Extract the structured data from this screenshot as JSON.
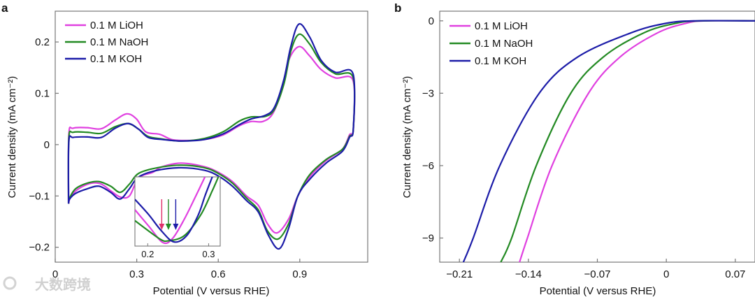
{
  "chart_data": [
    {
      "panel_label": "a",
      "type": "line",
      "title": "",
      "xlabel": "Potential (V versus RHE)",
      "ylabel": "Current density (mA cm⁻²)",
      "xlim": [
        0,
        1.15
      ],
      "ylim": [
        -0.229,
        0.26
      ],
      "xticks": [
        0,
        0.3,
        0.6,
        0.9
      ],
      "xtick_labels": [
        "0",
        "0.3",
        "0.6",
        "0.9"
      ],
      "yticks": [
        -0.2,
        -0.1,
        0,
        0.1,
        0.2
      ],
      "ytick_labels": [
        "−0.2",
        "−0.1",
        "0",
        "0.1",
        "0.2"
      ],
      "legend_position": "top-left",
      "series": [
        {
          "name": "0.1 M LiOH",
          "color": "#e040e0",
          "x": [
            0.049,
            0.05,
            0.066,
            0.118,
            0.17,
            0.221,
            0.264,
            0.299,
            0.333,
            0.385,
            0.428,
            0.48,
            0.549,
            0.618,
            0.678,
            0.721,
            0.764,
            0.8,
            0.833,
            0.859,
            0.897,
            0.936,
            0.979,
            1.031,
            1.096,
            1.097,
            1.083,
            1.057,
            0.997,
            0.936,
            0.893,
            0.859,
            0.816,
            0.781,
            0.747,
            0.704,
            0.652,
            0.6,
            0.549,
            0.463,
            0.394,
            0.359,
            0.307,
            0.273,
            0.239,
            0.204,
            0.17,
            0.135,
            0.092,
            0.058,
            0.049
          ],
          "y": [
            -0.115,
            0.019,
            0.032,
            0.033,
            0.031,
            0.048,
            0.06,
            0.05,
            0.025,
            0.02,
            0.01,
            0.008,
            0.01,
            0.019,
            0.037,
            0.045,
            0.045,
            0.06,
            0.105,
            0.164,
            0.191,
            0.173,
            0.146,
            0.13,
            0.125,
            0.03,
            0.019,
            -0.009,
            -0.031,
            -0.063,
            -0.1,
            -0.145,
            -0.172,
            -0.154,
            -0.118,
            -0.1,
            -0.072,
            -0.054,
            -0.043,
            -0.036,
            -0.043,
            -0.054,
            -0.065,
            -0.1,
            -0.102,
            -0.09,
            -0.077,
            -0.075,
            -0.084,
            -0.1,
            -0.115
          ]
        },
        {
          "name": "0.1 M NaOH",
          "color": "#238a23",
          "x": [
            0.049,
            0.05,
            0.066,
            0.118,
            0.17,
            0.221,
            0.269,
            0.307,
            0.342,
            0.394,
            0.463,
            0.549,
            0.618,
            0.678,
            0.721,
            0.773,
            0.807,
            0.842,
            0.867,
            0.897,
            0.936,
            0.979,
            1.031,
            1.096,
            1.097,
            1.083,
            1.057,
            0.997,
            0.936,
            0.893,
            0.859,
            0.82,
            0.781,
            0.747,
            0.704,
            0.652,
            0.6,
            0.549,
            0.463,
            0.376,
            0.307,
            0.273,
            0.239,
            0.204,
            0.161,
            0.118,
            0.075,
            0.053,
            0.049
          ],
          "y": [
            -0.115,
            0.012,
            0.024,
            0.024,
            0.022,
            0.035,
            0.041,
            0.03,
            0.016,
            0.011,
            0.007,
            0.012,
            0.025,
            0.046,
            0.054,
            0.055,
            0.069,
            0.119,
            0.182,
            0.215,
            0.196,
            0.16,
            0.138,
            0.131,
            0.03,
            0.016,
            -0.009,
            -0.029,
            -0.059,
            -0.1,
            -0.154,
            -0.184,
            -0.168,
            -0.127,
            -0.104,
            -0.075,
            -0.056,
            -0.045,
            -0.04,
            -0.045,
            -0.056,
            -0.077,
            -0.093,
            -0.081,
            -0.072,
            -0.075,
            -0.086,
            -0.104,
            -0.115
          ]
        },
        {
          "name": "0.1 M KOH",
          "color": "#1c1ca8",
          "x": [
            0.049,
            0.05,
            0.066,
            0.118,
            0.17,
            0.221,
            0.269,
            0.307,
            0.342,
            0.394,
            0.463,
            0.549,
            0.618,
            0.678,
            0.721,
            0.773,
            0.807,
            0.842,
            0.867,
            0.897,
            0.936,
            0.979,
            1.031,
            1.096,
            1.097,
            1.083,
            1.057,
            0.997,
            0.936,
            0.893,
            0.859,
            0.824,
            0.785,
            0.747,
            0.704,
            0.652,
            0.6,
            0.549,
            0.463,
            0.376,
            0.307,
            0.273,
            0.239,
            0.204,
            0.161,
            0.118,
            0.075,
            0.053,
            0.049
          ],
          "y": [
            -0.115,
            0.005,
            0.014,
            0.015,
            0.014,
            0.032,
            0.041,
            0.03,
            0.014,
            0.01,
            0.007,
            0.01,
            0.021,
            0.039,
            0.05,
            0.057,
            0.073,
            0.128,
            0.191,
            0.235,
            0.21,
            0.164,
            0.141,
            0.138,
            0.03,
            0.014,
            -0.013,
            -0.036,
            -0.068,
            -0.1,
            -0.163,
            -0.203,
            -0.177,
            -0.131,
            -0.109,
            -0.081,
            -0.061,
            -0.05,
            -0.045,
            -0.05,
            -0.063,
            -0.086,
            -0.106,
            -0.093,
            -0.081,
            -0.086,
            -0.095,
            -0.106,
            -0.115
          ]
        }
      ],
      "inset": {
        "xlim": [
          0.179,
          0.319
        ],
        "ylim": [
          -0.11,
          -0.07
        ],
        "xticks": [
          0.2,
          0.3
        ],
        "xtick_labels": [
          "0.2",
          "0.3"
        ],
        "series": [
          {
            "name": "0.1 M LiOH",
            "color": "#e040e0",
            "x": [
              0.179,
              0.202,
              0.225,
              0.241,
              0.26,
              0.279,
              0.294
            ],
            "y": [
              -0.089,
              -0.0986,
              -0.108,
              -0.1055,
              -0.0945,
              -0.081,
              -0.07
            ]
          },
          {
            "name": "0.1 M NaOH",
            "color": "#238a23",
            "x": [
              0.179,
              0.202,
              0.222,
              0.233,
              0.26,
              0.287,
              0.306,
              0.316
            ],
            "y": [
              -0.0953,
              -0.1014,
              -0.1063,
              -0.107,
              -0.104,
              -0.092,
              -0.078,
              -0.07
            ]
          },
          {
            "name": "0.1 M KOH",
            "color": "#1c1ca8",
            "x": [
              0.179,
              0.202,
              0.222,
              0.243,
              0.264,
              0.283,
              0.294,
              0.306
            ],
            "y": [
              -0.083,
              -0.092,
              -0.101,
              -0.1076,
              -0.104,
              -0.092,
              -0.081,
              -0.07
            ]
          }
        ],
        "arrows": [
          {
            "x": 0.223,
            "color": "#e0306a"
          },
          {
            "x": 0.234,
            "color": "#238a23"
          },
          {
            "x": 0.246,
            "color": "#1c1ca8"
          }
        ]
      }
    },
    {
      "panel_label": "b",
      "type": "line",
      "title": "",
      "xlabel": "Potential (V versus RHE)",
      "ylabel": "Current density (mA cm⁻²)",
      "xlim": [
        -0.23,
        0.09
      ],
      "ylim": [
        -10,
        0.4
      ],
      "xticks": [
        -0.21,
        -0.14,
        -0.07,
        0,
        0.07
      ],
      "xtick_labels": [
        "−0.21",
        "−0.14",
        "−0.07",
        "0",
        "0.07"
      ],
      "yticks": [
        0,
        -3,
        -6,
        -9
      ],
      "ytick_labels": [
        "0",
        "−3",
        "−6",
        "−9"
      ],
      "legend_position": "top-left",
      "series": [
        {
          "name": "0.1 M LiOH",
          "color": "#e040e0",
          "x": [
            -0.149,
            -0.141,
            -0.116,
            -0.079,
            -0.047,
            -0.009,
            0.02,
            0.04,
            0.09
          ],
          "y": [
            -10,
            -9,
            -6,
            -3,
            -1.5,
            -0.5,
            -0.1,
            0,
            0
          ]
        },
        {
          "name": "0.1 M NaOH",
          "color": "#238a23",
          "x": [
            -0.168,
            -0.157,
            -0.132,
            -0.097,
            -0.064,
            -0.023,
            0.01,
            0.035,
            0.09
          ],
          "y": [
            -10,
            -9,
            -6,
            -3,
            -1.5,
            -0.5,
            -0.1,
            0,
            0
          ]
        },
        {
          "name": "0.1 M KOH",
          "color": "#1c1ca8",
          "x": [
            -0.206,
            -0.196,
            -0.169,
            -0.129,
            -0.09,
            -0.036,
            0.0,
            0.03,
            0.09
          ],
          "y": [
            -10,
            -9,
            -6,
            -3,
            -1.5,
            -0.5,
            -0.1,
            0,
            0
          ]
        }
      ]
    }
  ],
  "watermark": "大数跨境"
}
